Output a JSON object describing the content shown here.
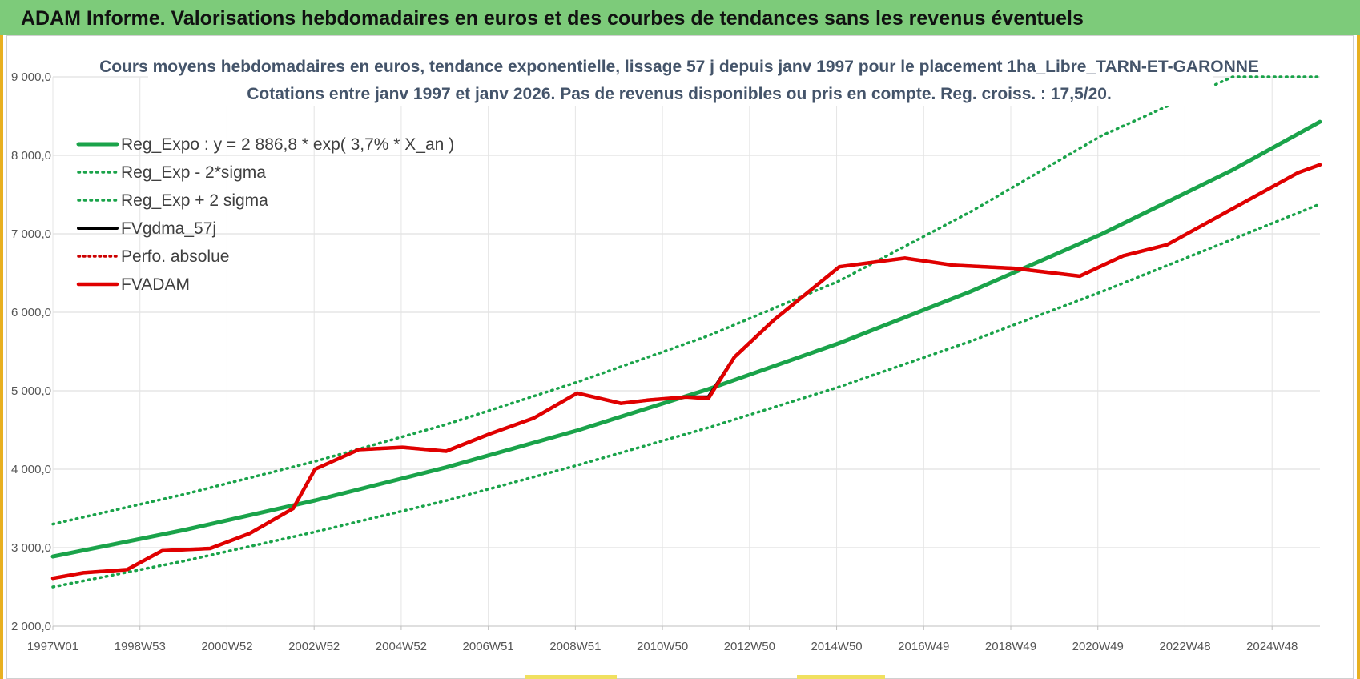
{
  "header": {
    "title": "ADAM Informe. Valorisations hebdomadaires en euros et des courbes de tendances sans les revenus éventuels"
  },
  "colors": {
    "banner": "#7dcb7a",
    "frame": "#e8b020",
    "reg_expo": "#1aa34a",
    "fvgdma": "#000000",
    "perfo": "#cc0000",
    "fvadam": "#e00000"
  },
  "chart_data": {
    "type": "line",
    "title": "Cours moyens hebdomadaires en euros, tendance exponentielle, lissage 57 j depuis janv 1997 pour le placement 1ha_Libre_TARN-ET-GARONNE",
    "subtitle": "Cotations entre janv 1997 et janv 2026. Pas de revenus disponibles ou pris en compte. Reg. croiss. : 17,5/20.",
    "xlabel": "",
    "ylabel": "",
    "x_ticks": [
      "1997W01",
      "1998W53",
      "2000W52",
      "2002W52",
      "2004W52",
      "2006W51",
      "2008W51",
      "2010W50",
      "2012W50",
      "2014W50",
      "2016W49",
      "2018W49",
      "2020W49",
      "2022W48",
      "2024W48"
    ],
    "y_ticks": [
      "2 000,0",
      "3 000,0",
      "4 000,0",
      "5 000,0",
      "6 000,0",
      "7 000,0",
      "8 000,0",
      "9 000,0"
    ],
    "ylim": [
      2000,
      9000
    ],
    "xlim": [
      1997.0,
      2026.0
    ],
    "grid": true,
    "legend_position": "top-left",
    "series": [
      {
        "name": "Reg_Expo : y = 2 886,8 * exp( 3,7% *  X_an )",
        "style": "solid",
        "x": [
          1997,
          2000,
          2003,
          2006,
          2009,
          2012,
          2015,
          2018,
          2021,
          2024,
          2026
        ],
        "values": [
          2887,
          3225,
          3602,
          4023,
          4494,
          5020,
          5607,
          6263,
          6995,
          7814,
          8428
        ]
      },
      {
        "name": "Reg_Exp - 2*sigma",
        "style": "dotted",
        "x": [
          1997,
          2000,
          2003,
          2006,
          2009,
          2012,
          2015,
          2018,
          2021,
          2024,
          2026
        ],
        "values": [
          2500,
          2830,
          3200,
          3600,
          4050,
          4530,
          5050,
          5630,
          6260,
          6930,
          7380
        ]
      },
      {
        "name": "Reg_Exp + 2 sigma",
        "style": "dotted",
        "x": [
          1997,
          2000,
          2003,
          2006,
          2009,
          2012,
          2015,
          2018,
          2021,
          2024,
          2026
        ],
        "values": [
          3300,
          3680,
          4100,
          4570,
          5110,
          5700,
          6400,
          7280,
          8250,
          9000,
          9000
        ]
      },
      {
        "name": "FVgdma_57j",
        "style": "solid",
        "x": [
          1997,
          1997.7,
          1998.7,
          1999.5,
          2000.6,
          2001.5,
          2002.5,
          2003.0,
          2004.0,
          2005.0,
          2006.0,
          2007.0,
          2008.0,
          2009.0,
          2010.0,
          2010.6,
          2011.5,
          2012.0,
          2012.6,
          2013.5,
          2015.0,
          2016.5,
          2017.6,
          2019.0,
          2020.5,
          2021.5,
          2022.5,
          2024.0,
          2025.5,
          2026.0
        ],
        "values": [
          2610,
          2680,
          2720,
          2960,
          2990,
          3180,
          3500,
          4000,
          4250,
          4280,
          4230,
          4450,
          4650,
          4970,
          4840,
          4880,
          4920,
          4920,
          5430,
          5900,
          6580,
          6690,
          6600,
          6560,
          6460,
          6720,
          6860,
          7320,
          7780,
          7880
        ]
      },
      {
        "name": "Perfo. absolue",
        "style": "dotted",
        "x": [
          1997,
          1997.7,
          1998.7,
          1999.5,
          2000.6,
          2001.5,
          2002.5,
          2003.0,
          2004.0,
          2005.0,
          2006.0,
          2007.0,
          2008.0,
          2009.0,
          2010.0,
          2010.6,
          2011.5,
          2012.0,
          2012.6,
          2013.5,
          2015.0,
          2016.5,
          2017.6,
          2019.0,
          2020.5,
          2021.5,
          2022.5,
          2024.0,
          2025.5,
          2026.0
        ],
        "values": [
          2610,
          2680,
          2720,
          2960,
          2990,
          3180,
          3500,
          4000,
          4250,
          4280,
          4230,
          4450,
          4650,
          4970,
          4840,
          4880,
          4920,
          4900,
          5430,
          5900,
          6580,
          6690,
          6600,
          6560,
          6460,
          6720,
          6860,
          7320,
          7780,
          7880
        ]
      },
      {
        "name": "FVADAM",
        "style": "solid",
        "x": [
          1997,
          1997.7,
          1998.7,
          1999.5,
          2000.6,
          2001.5,
          2002.5,
          2003.0,
          2004.0,
          2005.0,
          2006.0,
          2007.0,
          2008.0,
          2009.0,
          2010.0,
          2010.6,
          2011.5,
          2012.0,
          2012.6,
          2013.5,
          2015.0,
          2016.5,
          2017.6,
          2019.0,
          2020.5,
          2021.5,
          2022.5,
          2024.0,
          2025.5,
          2026.0
        ],
        "values": [
          2610,
          2680,
          2720,
          2960,
          2990,
          3180,
          3500,
          4000,
          4250,
          4280,
          4230,
          4450,
          4650,
          4970,
          4840,
          4880,
          4920,
          4900,
          5430,
          5900,
          6580,
          6690,
          6600,
          6560,
          6460,
          6720,
          6860,
          7320,
          7780,
          7880
        ]
      }
    ]
  }
}
